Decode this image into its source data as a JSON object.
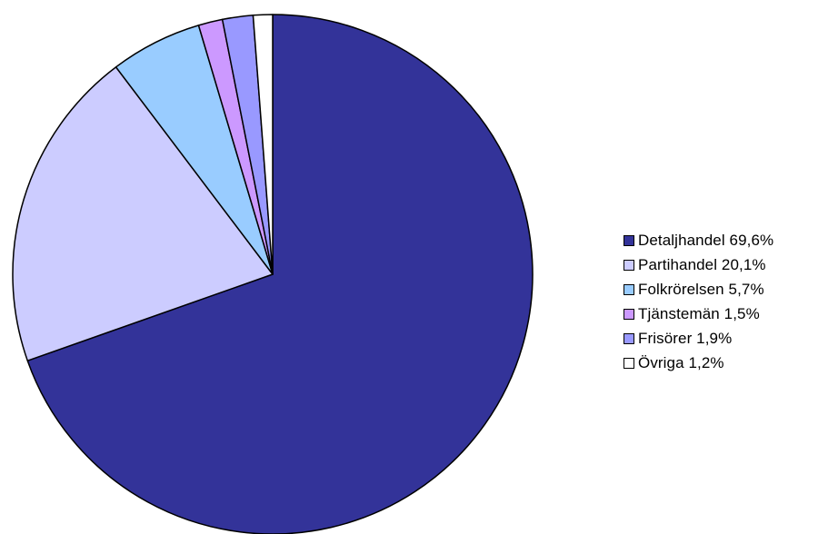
{
  "chart_data": {
    "type": "pie",
    "title": "",
    "start_angle": "12 o'clock",
    "direction": "clockwise",
    "legend_position": "right",
    "slices": [
      {
        "name": "Detaljhandel",
        "value": 69.6,
        "label": "Detaljhandel 69,6%",
        "color": "#333399"
      },
      {
        "name": "Partihandel",
        "value": 20.1,
        "label": "Partihandel 20,1%",
        "color": "#CCCCFF"
      },
      {
        "name": "Folkrörelsen",
        "value": 5.7,
        "label": "Folkrörelsen 5,7%",
        "color": "#99CCFF"
      },
      {
        "name": "Tjänstemän",
        "value": 1.5,
        "label": "Tjänstemän 1,5%",
        "color": "#CC99FF"
      },
      {
        "name": "Frisörer",
        "value": 1.9,
        "label": "Frisörer 1,9%",
        "color": "#9999FF"
      },
      {
        "name": "Övriga",
        "value": 1.2,
        "label": "Övriga 1,2%",
        "color": "#FFFFFF"
      }
    ]
  }
}
